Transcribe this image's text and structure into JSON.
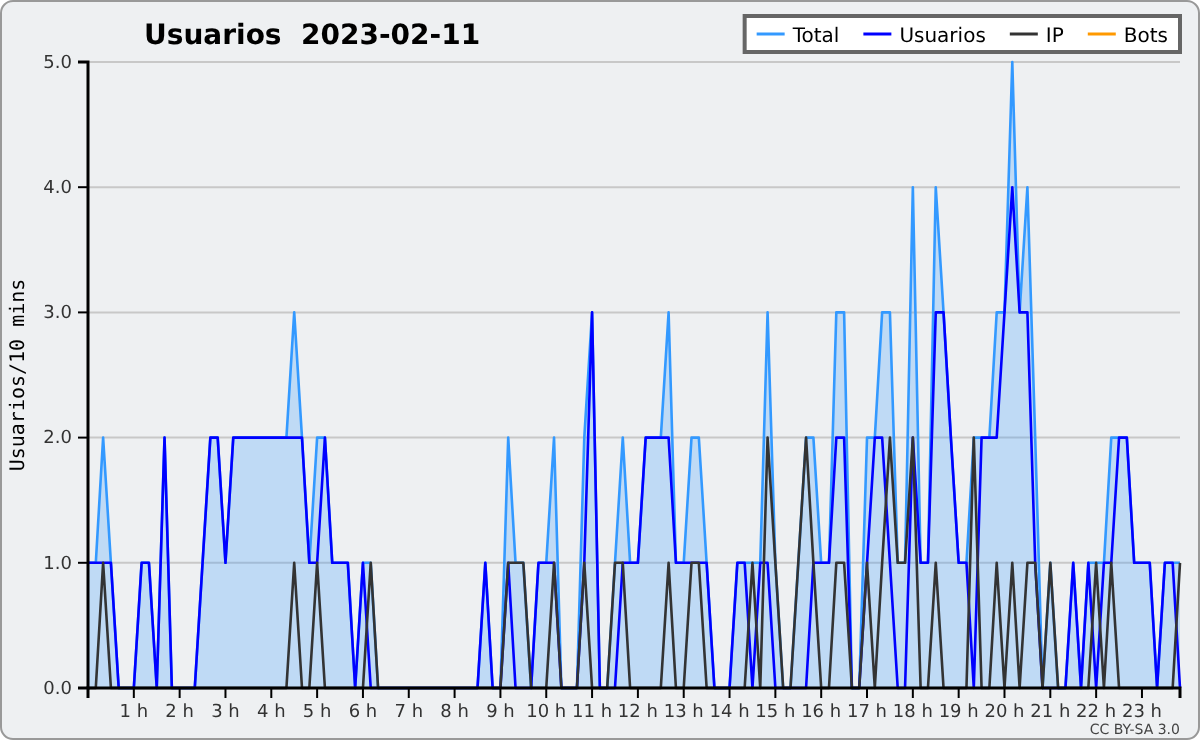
{
  "chart_data": {
    "type": "line",
    "title": "Usuarios  2023-02-11",
    "ylabel": "Usuarios/10 mins",
    "x": [
      0,
      0.17,
      0.33,
      0.5,
      0.67,
      0.83,
      1,
      1.17,
      1.33,
      1.5,
      1.67,
      1.83,
      2,
      2.17,
      2.33,
      2.5,
      2.67,
      2.83,
      3,
      3.17,
      3.33,
      3.5,
      3.67,
      3.83,
      4,
      4.17,
      4.33,
      4.5,
      4.67,
      4.83,
      5,
      5.17,
      5.33,
      5.5,
      5.67,
      5.83,
      6,
      6.17,
      6.33,
      6.5,
      6.67,
      6.83,
      7,
      7.17,
      7.33,
      7.5,
      7.67,
      7.83,
      8,
      8.17,
      8.33,
      8.5,
      8.67,
      8.83,
      9,
      9.17,
      9.33,
      9.5,
      9.67,
      9.83,
      10,
      10.17,
      10.33,
      10.5,
      10.67,
      10.83,
      11,
      11.17,
      11.33,
      11.5,
      11.67,
      11.83,
      12,
      12.17,
      12.33,
      12.5,
      12.67,
      12.83,
      13,
      13.17,
      13.33,
      13.5,
      13.67,
      13.83,
      14,
      14.17,
      14.33,
      14.5,
      14.67,
      14.83,
      15,
      15.17,
      15.33,
      15.5,
      15.67,
      15.83,
      16,
      16.17,
      16.33,
      16.5,
      16.67,
      16.83,
      17,
      17.17,
      17.33,
      17.5,
      17.67,
      17.83,
      18,
      18.17,
      18.33,
      18.5,
      18.67,
      18.83,
      19,
      19.17,
      19.33,
      19.5,
      19.67,
      19.83,
      20,
      20.17,
      20.33,
      20.5,
      20.67,
      20.83,
      21,
      21.17,
      21.33,
      21.5,
      21.67,
      21.83,
      22,
      22.17,
      22.33,
      22.5,
      22.67,
      22.83,
      23,
      23.17,
      23.33,
      23.5,
      23.67,
      23.83
    ],
    "series": [
      {
        "name": "Total",
        "type": "area",
        "color": "#3399ff",
        "values": [
          1,
          1,
          2,
          1,
          0,
          0,
          0,
          1,
          1,
          0,
          2,
          0,
          0,
          0,
          0,
          1,
          2,
          2,
          1,
          2,
          2,
          2,
          2,
          2,
          2,
          2,
          2,
          3,
          2,
          1,
          2,
          2,
          1,
          1,
          1,
          0,
          1,
          1,
          0,
          0,
          0,
          0,
          0,
          0,
          0,
          0,
          0,
          0,
          0,
          0,
          0,
          0,
          1,
          0,
          0,
          2,
          1,
          1,
          0,
          1,
          1,
          2,
          0,
          0,
          0,
          2,
          3,
          0,
          0,
          1,
          2,
          1,
          1,
          2,
          2,
          2,
          3,
          1,
          1,
          2,
          2,
          1,
          0,
          0,
          0,
          1,
          1,
          1,
          1,
          3,
          1,
          0,
          0,
          1,
          2,
          2,
          1,
          1,
          3,
          3,
          0,
          0,
          2,
          2,
          3,
          3,
          1,
          1,
          4,
          1,
          1,
          4,
          3,
          2,
          1,
          1,
          2,
          2,
          2,
          3,
          3,
          5,
          3,
          4,
          2,
          0,
          1,
          0,
          0,
          1,
          0,
          1,
          1,
          1,
          2,
          2,
          2,
          1,
          1,
          1,
          0,
          1,
          1,
          1
        ]
      },
      {
        "name": "Usuarios",
        "color": "#0000ff",
        "values": [
          1,
          1,
          1,
          1,
          0,
          0,
          0,
          1,
          1,
          0,
          2,
          0,
          0,
          0,
          0,
          1,
          2,
          2,
          1,
          2,
          2,
          2,
          2,
          2,
          2,
          2,
          2,
          2,
          2,
          1,
          1,
          2,
          1,
          1,
          1,
          0,
          1,
          0,
          0,
          0,
          0,
          0,
          0,
          0,
          0,
          0,
          0,
          0,
          0,
          0,
          0,
          0,
          1,
          0,
          0,
          1,
          0,
          0,
          0,
          1,
          1,
          1,
          0,
          0,
          0,
          1,
          3,
          0,
          0,
          0,
          1,
          1,
          1,
          2,
          2,
          2,
          2,
          1,
          1,
          1,
          1,
          1,
          0,
          0,
          0,
          1,
          1,
          0,
          1,
          1,
          0,
          0,
          0,
          0,
          0,
          1,
          1,
          1,
          2,
          2,
          0,
          0,
          1,
          2,
          2,
          1,
          0,
          0,
          2,
          1,
          1,
          3,
          3,
          2,
          1,
          1,
          0,
          2,
          2,
          2,
          3,
          4,
          3,
          3,
          1,
          0,
          0,
          0,
          0,
          1,
          0,
          1,
          0,
          1,
          1,
          2,
          2,
          1,
          1,
          1,
          0,
          1,
          1,
          0
        ]
      },
      {
        "name": "IP",
        "color": "#333333",
        "values": [
          0,
          0,
          1,
          0,
          0,
          0,
          0,
          0,
          0,
          0,
          0,
          0,
          0,
          0,
          0,
          0,
          0,
          0,
          0,
          0,
          0,
          0,
          0,
          0,
          0,
          0,
          0,
          1,
          0,
          0,
          1,
          0,
          0,
          0,
          0,
          0,
          0,
          1,
          0,
          0,
          0,
          0,
          0,
          0,
          0,
          0,
          0,
          0,
          0,
          0,
          0,
          0,
          0,
          0,
          0,
          1,
          1,
          1,
          0,
          0,
          0,
          1,
          0,
          0,
          0,
          1,
          0,
          0,
          0,
          1,
          1,
          0,
          0,
          0,
          0,
          0,
          1,
          0,
          0,
          1,
          1,
          0,
          0,
          0,
          0,
          0,
          0,
          1,
          0,
          2,
          1,
          0,
          0,
          1,
          2,
          1,
          0,
          0,
          1,
          1,
          0,
          0,
          1,
          0,
          1,
          2,
          1,
          1,
          2,
          0,
          0,
          1,
          0,
          0,
          0,
          0,
          2,
          0,
          0,
          1,
          0,
          1,
          0,
          1,
          1,
          0,
          1,
          0,
          0,
          0,
          0,
          0,
          1,
          0,
          1,
          0,
          0,
          0,
          0,
          0,
          0,
          0,
          0,
          1
        ]
      },
      {
        "name": "Bots",
        "color": "#ff9900",
        "values": [
          null,
          null,
          null,
          null,
          null,
          null,
          null,
          null,
          null,
          null,
          null,
          null,
          null,
          null,
          null,
          null,
          null,
          null,
          null,
          null,
          null,
          null,
          null,
          null,
          null,
          null,
          null,
          null,
          null,
          null,
          null,
          null,
          null,
          null,
          null,
          null,
          null,
          null,
          null,
          null,
          null,
          null,
          null,
          null,
          null,
          null,
          null,
          null,
          null,
          null,
          null,
          null,
          null,
          null,
          null,
          null,
          null,
          null,
          null,
          null,
          null,
          null,
          null,
          null,
          null,
          null,
          null,
          null,
          null,
          null,
          null,
          null,
          null,
          null,
          null,
          null,
          null,
          null,
          null,
          null,
          null,
          null,
          null,
          null,
          null,
          null,
          null,
          null,
          null,
          null,
          null,
          null,
          null,
          null,
          null,
          null,
          null,
          null,
          null,
          null,
          null,
          null,
          null,
          null,
          null,
          null,
          null,
          null,
          null,
          null,
          null,
          null,
          null,
          null,
          null,
          null,
          null,
          null,
          null,
          null,
          null,
          null,
          null,
          null,
          null,
          null,
          null,
          null,
          null,
          null,
          null,
          null,
          null,
          null,
          null,
          null,
          null,
          null,
          null,
          null,
          null,
          null,
          null,
          null
        ]
      }
    ],
    "xlim": [
      0,
      23.83
    ],
    "xticks": [
      {
        "value": 1,
        "label": "1 h"
      },
      {
        "value": 2,
        "label": "2 h"
      },
      {
        "value": 3,
        "label": "3 h"
      },
      {
        "value": 4,
        "label": "4 h"
      },
      {
        "value": 5,
        "label": "5 h"
      },
      {
        "value": 6,
        "label": "6 h"
      },
      {
        "value": 7,
        "label": "7 h"
      },
      {
        "value": 8,
        "label": "8 h"
      },
      {
        "value": 9,
        "label": "9 h"
      },
      {
        "value": 10,
        "label": "10 h"
      },
      {
        "value": 11,
        "label": "11 h"
      },
      {
        "value": 12,
        "label": "12 h"
      },
      {
        "value": 13,
        "label": "13 h"
      },
      {
        "value": 14,
        "label": "14 h"
      },
      {
        "value": 15,
        "label": "15 h"
      },
      {
        "value": 16,
        "label": "16 h"
      },
      {
        "value": 17,
        "label": "17 h"
      },
      {
        "value": 18,
        "label": "18 h"
      },
      {
        "value": 19,
        "label": "19 h"
      },
      {
        "value": 20,
        "label": "20 h"
      },
      {
        "value": 21,
        "label": "21 h"
      },
      {
        "value": 22,
        "label": "22 h"
      },
      {
        "value": 23,
        "label": "23 h"
      }
    ],
    "ylim": [
      0,
      5
    ],
    "yticks": [
      {
        "value": 0,
        "label": "0.0"
      },
      {
        "value": 1,
        "label": "1.0"
      },
      {
        "value": 2,
        "label": "2.0"
      },
      {
        "value": 3,
        "label": "3.0"
      },
      {
        "value": 4,
        "label": "4.0"
      },
      {
        "value": 5,
        "label": "5.0"
      }
    ],
    "grid": "y",
    "legend": "top right",
    "marker": "none",
    "line_style": "solid",
    "annotations": [
      "CC BY-SA 3.0"
    ]
  }
}
